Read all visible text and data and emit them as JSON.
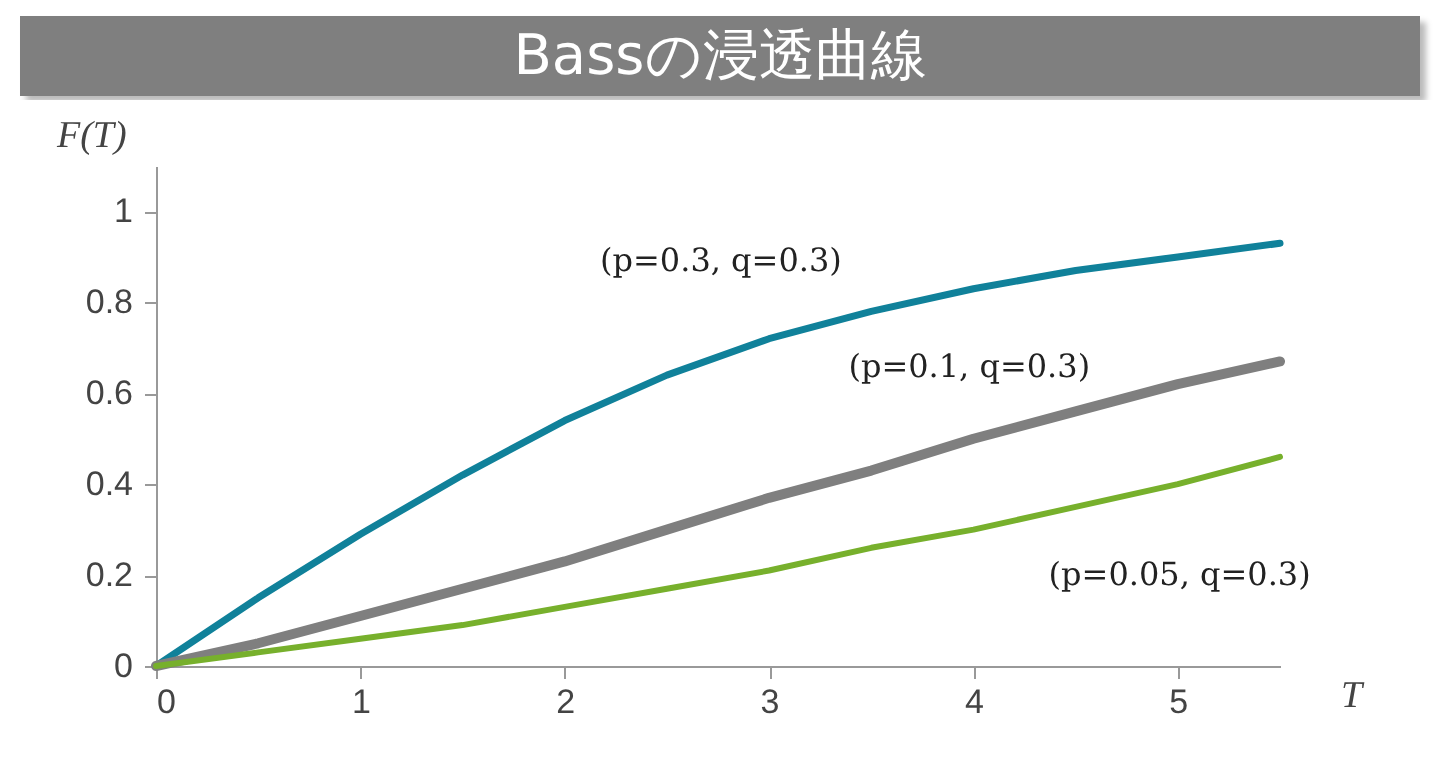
{
  "chart_data": {
    "type": "line",
    "title": "Bassの浸透曲線",
    "xlabel": "T",
    "ylabel": "F(T)",
    "x": [
      0,
      0.5,
      1,
      1.5,
      2,
      2.5,
      3,
      3.5,
      4,
      4.5,
      5,
      5.5
    ],
    "series": [
      {
        "name": "(p=0.3, q=0.3)",
        "color": "#10819a",
        "values": [
          0,
          0.15,
          0.29,
          0.42,
          0.54,
          0.64,
          0.72,
          0.78,
          0.83,
          0.87,
          0.9,
          0.93
        ]
      },
      {
        "name": "(p=0.1, q=0.3)",
        "color": "#7f7f7f",
        "values": [
          0,
          0.05,
          0.11,
          0.17,
          0.23,
          0.3,
          0.37,
          0.43,
          0.5,
          0.56,
          0.62,
          0.67
        ]
      },
      {
        "name": "(p=0.05, q=0.3)",
        "color": "#77b02c",
        "values": [
          0,
          0.03,
          0.06,
          0.09,
          0.13,
          0.17,
          0.21,
          0.26,
          0.3,
          0.35,
          0.4,
          0.46
        ]
      }
    ],
    "xlim": [
      0,
      5.5
    ],
    "ylim": [
      0,
      1.1
    ],
    "xticks": [
      0,
      1,
      2,
      3,
      4,
      5
    ],
    "yticks": [
      0,
      0.2,
      0.4,
      0.6,
      0.8,
      1
    ],
    "grid": false,
    "legend": false,
    "marker": "none",
    "line_style": "solid"
  }
}
